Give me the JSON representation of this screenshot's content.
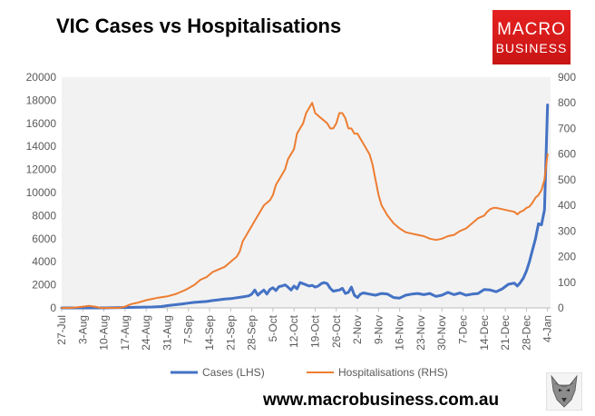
{
  "title": "VIC Cases vs Hospitalisations",
  "logo": {
    "line1": "MACRO",
    "line2": "BUSINESS",
    "color": "#d71a1a"
  },
  "website": "www.macrobusiness.com.au",
  "wolf_logo": "wolf-head-logo",
  "chart_data": {
    "type": "line",
    "title": "VIC Cases vs Hospitalisations",
    "x_tick_labels": [
      "27-Jul",
      "3-Aug",
      "10-Aug",
      "17-Aug",
      "24-Aug",
      "31-Aug",
      "7-Sep",
      "14-Sep",
      "21-Sep",
      "28-Sep",
      "5-Oct",
      "12-Oct",
      "19-Oct",
      "26-Oct",
      "2-Nov",
      "9-Nov",
      "16-Nov",
      "23-Nov",
      "30-Nov",
      "7-Dec",
      "14-Dec",
      "21-Dec",
      "28-Dec",
      "4-Jan"
    ],
    "x_tick_days": [
      0,
      7,
      14,
      21,
      28,
      35,
      42,
      49,
      56,
      63,
      70,
      77,
      84,
      91,
      98,
      105,
      112,
      119,
      126,
      133,
      140,
      147,
      154,
      161
    ],
    "x_range_days": [
      0,
      162
    ],
    "y_left": {
      "label": "Cases (LHS)",
      "min": 0,
      "max": 20000,
      "step": 2000,
      "ticks": [
        "0",
        "2000",
        "4000",
        "6000",
        "8000",
        "10000",
        "12000",
        "14000",
        "16000",
        "18000",
        "20000"
      ]
    },
    "y_right": {
      "label": "Hospitalisations (RHS)",
      "min": 0,
      "max": 900,
      "step": 100,
      "ticks": [
        "0",
        "100",
        "200",
        "300",
        "400",
        "500",
        "600",
        "700",
        "800",
        "900"
      ]
    },
    "series": [
      {
        "name": "Cases (LHS)",
        "axis": "left",
        "color": "#4472c4",
        "x": [
          0,
          4,
          8,
          10,
          14,
          18,
          22,
          26,
          30,
          33,
          35,
          38,
          40,
          42,
          44,
          46,
          48,
          50,
          52,
          54,
          56,
          58,
          60,
          61,
          62,
          63,
          64,
          65,
          66,
          67,
          68,
          69,
          70,
          71,
          72,
          73,
          74,
          75,
          76,
          77,
          78,
          79,
          80,
          81,
          82,
          83,
          84,
          85,
          86,
          87,
          88,
          89,
          90,
          91,
          92,
          93,
          94,
          95,
          96,
          97,
          98,
          99,
          100,
          102,
          104,
          106,
          108,
          110,
          112,
          114,
          116,
          118,
          120,
          122,
          124,
          126,
          128,
          130,
          132,
          134,
          136,
          138,
          140,
          142,
          144,
          146,
          148,
          150,
          151,
          152,
          153,
          154,
          155,
          156,
          157,
          158,
          159,
          160,
          161
        ],
        "y": [
          0,
          0,
          0,
          0,
          0,
          20,
          40,
          60,
          80,
          120,
          200,
          280,
          350,
          420,
          480,
          520,
          560,
          640,
          700,
          760,
          800,
          880,
          950,
          1000,
          1050,
          1200,
          1550,
          1100,
          1350,
          1550,
          1200,
          1600,
          1750,
          1500,
          1850,
          1900,
          2000,
          1800,
          1550,
          1900,
          1650,
          2200,
          2100,
          2000,
          1900,
          1950,
          1800,
          1900,
          2100,
          2200,
          2100,
          1700,
          1450,
          1500,
          1550,
          1700,
          1250,
          1350,
          1800,
          1100,
          900,
          1200,
          1300,
          1200,
          1100,
          1250,
          1200,
          900,
          850,
          1100,
          1200,
          1250,
          1150,
          1250,
          1000,
          1100,
          1350,
          1150,
          1300,
          1100,
          1200,
          1250,
          1600,
          1550,
          1400,
          1650,
          2050,
          2150,
          1900,
          2200,
          2600,
          3200,
          4000,
          5000,
          6000,
          7300,
          7200,
          8500,
          17600
        ]
      },
      {
        "name": "Hospitalisations (RHS)",
        "axis": "right",
        "color": "#ed7d31",
        "x": [
          0,
          3,
          5,
          7,
          9,
          11,
          13,
          16,
          19,
          21,
          23,
          25,
          28,
          30,
          32,
          35,
          38,
          41,
          44,
          46,
          48,
          50,
          52,
          54,
          56,
          57,
          58,
          59,
          60,
          61,
          62,
          63,
          64,
          65,
          66,
          67,
          68,
          69,
          70,
          71,
          72,
          73,
          74,
          75,
          76,
          77,
          78,
          79,
          80,
          81,
          82,
          83,
          84,
          85,
          86,
          87,
          88,
          89,
          90,
          91,
          92,
          93,
          94,
          95,
          96,
          97,
          98,
          99,
          100,
          101,
          102,
          103,
          104,
          105,
          106,
          107,
          108,
          110,
          112,
          114,
          116,
          118,
          120,
          122,
          124,
          126,
          128,
          130,
          132,
          134,
          136,
          138,
          140,
          141,
          142,
          143,
          144,
          146,
          148,
          150,
          151,
          152,
          153,
          154,
          155,
          156,
          157,
          158,
          159,
          160,
          161
        ],
        "y": [
          0,
          0,
          2,
          5,
          8,
          5,
          0,
          0,
          0,
          5,
          15,
          20,
          30,
          35,
          40,
          45,
          55,
          70,
          90,
          110,
          120,
          140,
          150,
          160,
          180,
          190,
          200,
          220,
          260,
          280,
          300,
          320,
          340,
          360,
          380,
          400,
          410,
          420,
          440,
          480,
          500,
          520,
          540,
          580,
          600,
          620,
          680,
          700,
          720,
          760,
          780,
          800,
          760,
          750,
          740,
          730,
          720,
          700,
          700,
          720,
          760,
          760,
          740,
          700,
          700,
          680,
          680,
          660,
          640,
          620,
          600,
          560,
          500,
          440,
          400,
          380,
          360,
          330,
          310,
          295,
          290,
          285,
          280,
          270,
          265,
          270,
          280,
          285,
          300,
          310,
          330,
          350,
          360,
          375,
          385,
          390,
          390,
          385,
          380,
          375,
          365,
          375,
          380,
          390,
          395,
          410,
          430,
          440,
          460,
          500,
          600
        ]
      }
    ]
  }
}
